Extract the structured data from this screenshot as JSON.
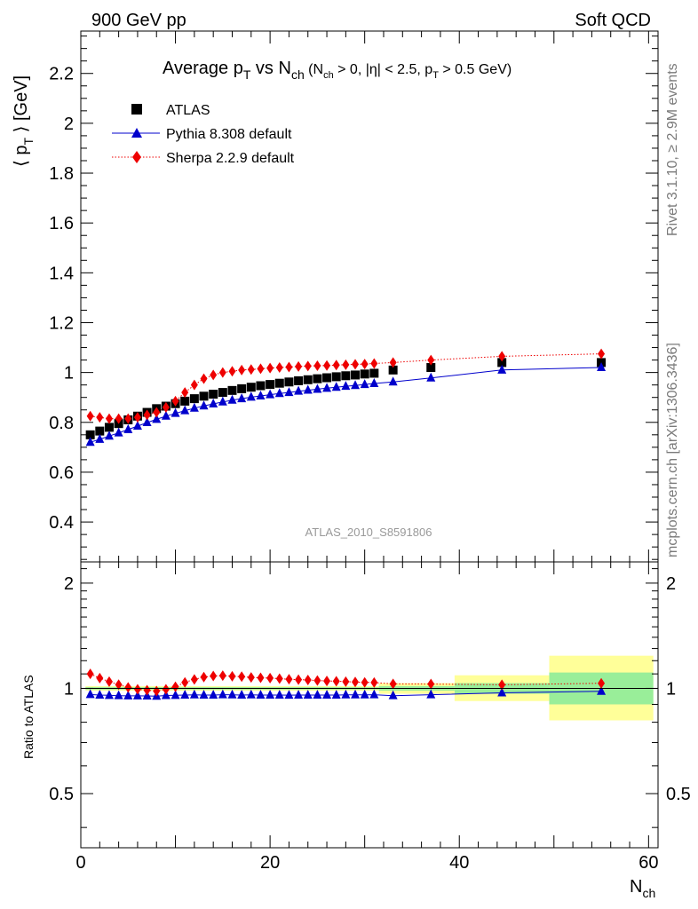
{
  "header": {
    "left": "900 GeV pp",
    "right": "Soft QCD"
  },
  "side_text": {
    "rivet": "Rivet 3.1.10, ≥ 2.9M events",
    "mcplots": "mcplots.cern.ch [arXiv:1306.3436]"
  },
  "chart_data": [
    {
      "type": "scatter",
      "title": {
        "main": "Average p",
        "main_sub": "T",
        "vs": " vs N",
        "vs_sub": "ch",
        "cuts_a": " (N",
        "cuts_a_sub": "ch",
        "cuts_b": " > 0, |η| < 2.5, p",
        "cuts_b_sub": "T",
        "cuts_c": " > 0.5 GeV)"
      },
      "watermark": "ATLAS_2010_S8591806",
      "ylabel": {
        "a": "⟨ p",
        "sub": "T",
        "b": " ⟩ [GeV]"
      },
      "xlim": [
        0,
        61
      ],
      "ylim": [
        0.24,
        2.37
      ],
      "yticks": [
        "0.4",
        "0.6",
        "0.8",
        "1",
        "1.2",
        "1.4",
        "1.6",
        "1.8",
        "2",
        "2.2"
      ],
      "legend_position": "top-left",
      "series": [
        {
          "name": "ATLAS",
          "marker": "square",
          "color": "#000000",
          "x": [
            1,
            2,
            3,
            4,
            5,
            6,
            7,
            8,
            9,
            10,
            11,
            12,
            13,
            14,
            15,
            16,
            17,
            18,
            19,
            20,
            21,
            22,
            23,
            24,
            25,
            26,
            27,
            28,
            29,
            30,
            31,
            33,
            37,
            44.5,
            55
          ],
          "y": [
            0.75,
            0.765,
            0.78,
            0.795,
            0.81,
            0.825,
            0.84,
            0.855,
            0.865,
            0.875,
            0.885,
            0.895,
            0.905,
            0.913,
            0.92,
            0.928,
            0.935,
            0.941,
            0.947,
            0.952,
            0.957,
            0.962,
            0.967,
            0.971,
            0.975,
            0.979,
            0.983,
            0.987,
            0.99,
            0.994,
            0.997,
            1.01,
            1.02,
            1.04,
            1.04
          ]
        },
        {
          "name": "Pythia 8.308 default",
          "marker": "triangle",
          "line": "solid",
          "color": "#0000cc",
          "x": [
            1,
            2,
            3,
            4,
            5,
            6,
            7,
            8,
            9,
            10,
            11,
            12,
            13,
            14,
            15,
            16,
            17,
            18,
            19,
            20,
            21,
            22,
            23,
            24,
            25,
            26,
            27,
            28,
            29,
            30,
            31,
            33,
            37,
            44.5,
            55
          ],
          "y": [
            0.72,
            0.732,
            0.745,
            0.758,
            0.771,
            0.785,
            0.799,
            0.812,
            0.825,
            0.836,
            0.847,
            0.857,
            0.866,
            0.874,
            0.882,
            0.889,
            0.895,
            0.901,
            0.906,
            0.911,
            0.916,
            0.92,
            0.925,
            0.929,
            0.933,
            0.937,
            0.941,
            0.945,
            0.948,
            0.952,
            0.956,
            0.962,
            0.978,
            1.01,
            1.02
          ]
        },
        {
          "name": "Sherpa 2.2.9 default",
          "marker": "diamond",
          "line": "dotted",
          "color": "#ee0000",
          "x": [
            1,
            2,
            3,
            4,
            5,
            6,
            7,
            8,
            9,
            10,
            11,
            12,
            13,
            14,
            15,
            16,
            17,
            18,
            19,
            20,
            21,
            22,
            23,
            24,
            25,
            26,
            27,
            28,
            29,
            30,
            31,
            33,
            37,
            44.5,
            55
          ],
          "y": [
            0.825,
            0.82,
            0.815,
            0.815,
            0.815,
            0.82,
            0.83,
            0.84,
            0.86,
            0.885,
            0.92,
            0.95,
            0.975,
            0.99,
            1.0,
            1.005,
            1.01,
            1.012,
            1.015,
            1.018,
            1.02,
            1.022,
            1.024,
            1.026,
            1.027,
            1.028,
            1.03,
            1.031,
            1.033,
            1.034,
            1.036,
            1.04,
            1.05,
            1.065,
            1.075
          ]
        }
      ]
    },
    {
      "type": "scatter",
      "ylabel": "Ratio to ATLAS",
      "xlabel": {
        "a": "N",
        "sub": "ch"
      },
      "xlim": [
        0,
        61
      ],
      "ylim": [
        0.35,
        2.3
      ],
      "log_y": true,
      "yticks_left": [
        "0.5",
        "1",
        "2"
      ],
      "yticks_right": [
        "0.5",
        "1",
        "2"
      ],
      "xticks": [
        "0",
        "20",
        "40",
        "60"
      ],
      "bands": [
        {
          "x0": 0.5,
          "x1": 31.5,
          "stat": [
            0.992,
            1.008
          ],
          "total": [
            0.985,
            1.015
          ]
        },
        {
          "x0": 31.5,
          "x1": 39.5,
          "stat": [
            0.985,
            1.015
          ],
          "total": [
            0.965,
            1.035
          ]
        },
        {
          "x0": 39.5,
          "x1": 49.5,
          "stat": [
            0.965,
            1.035
          ],
          "total": [
            0.92,
            1.09
          ]
        },
        {
          "x0": 49.5,
          "x1": 60.5,
          "stat": [
            0.9,
            1.11
          ],
          "total": [
            0.81,
            1.24
          ]
        }
      ],
      "series": [
        {
          "name": "Pythia 8.308 default",
          "color": "#0000cc",
          "x": [
            1,
            2,
            3,
            4,
            5,
            6,
            7,
            8,
            9,
            10,
            11,
            12,
            13,
            14,
            15,
            16,
            17,
            18,
            19,
            20,
            21,
            22,
            23,
            24,
            25,
            26,
            27,
            28,
            29,
            30,
            31,
            33,
            37,
            44.5,
            55
          ],
          "y": [
            0.96,
            0.957,
            0.955,
            0.953,
            0.952,
            0.952,
            0.951,
            0.95,
            0.954,
            0.955,
            0.957,
            0.958,
            0.957,
            0.957,
            0.959,
            0.958,
            0.957,
            0.958,
            0.957,
            0.957,
            0.957,
            0.956,
            0.957,
            0.957,
            0.957,
            0.957,
            0.957,
            0.958,
            0.958,
            0.958,
            0.959,
            0.953,
            0.959,
            0.971,
            0.981
          ]
        },
        {
          "name": "Sherpa 2.2.9 default",
          "color": "#ee0000",
          "x": [
            1,
            2,
            3,
            4,
            5,
            6,
            7,
            8,
            9,
            10,
            11,
            12,
            13,
            14,
            15,
            16,
            17,
            18,
            19,
            20,
            21,
            22,
            23,
            24,
            25,
            26,
            27,
            28,
            29,
            30,
            31,
            33,
            37,
            44.5,
            55
          ],
          "y": [
            1.1,
            1.07,
            1.045,
            1.025,
            1.006,
            0.994,
            0.988,
            0.982,
            0.994,
            1.011,
            1.04,
            1.061,
            1.077,
            1.085,
            1.087,
            1.083,
            1.08,
            1.075,
            1.072,
            1.07,
            1.066,
            1.062,
            1.059,
            1.057,
            1.053,
            1.05,
            1.048,
            1.045,
            1.043,
            1.04,
            1.039,
            1.03,
            1.029,
            1.024,
            1.034
          ]
        }
      ]
    }
  ]
}
